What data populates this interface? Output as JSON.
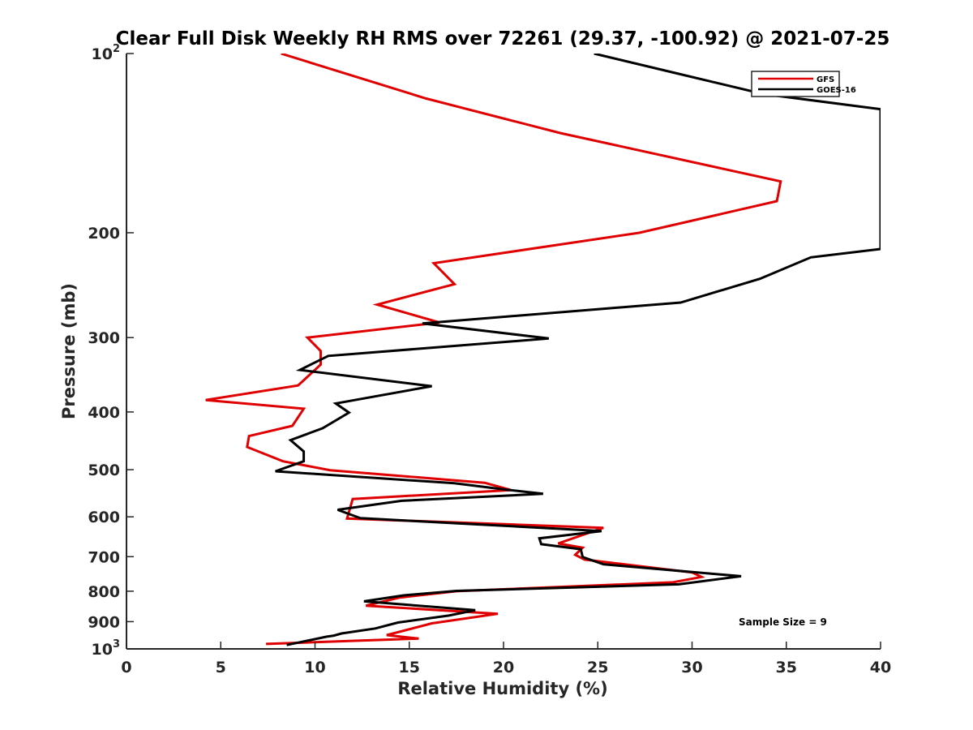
{
  "chart_data": {
    "type": "line",
    "title": "Clear Full Disk Weekly RH RMS over 72261 (29.37, -100.92) @ 2021-07-25",
    "xlabel": "Relative Humidity (%)",
    "ylabel": "Pressure (mb)",
    "xlim": [
      0,
      40
    ],
    "ylim": [
      100,
      1000
    ],
    "y_scale": "log",
    "y_reversed": true,
    "x_ticks": [
      "0",
      "5",
      "10",
      "15",
      "20",
      "25",
      "30",
      "35",
      "40"
    ],
    "y_ticks": [
      {
        "value": 100,
        "label": "10",
        "sup": "2"
      },
      {
        "value": 200,
        "label": "200"
      },
      {
        "value": 300,
        "label": "300"
      },
      {
        "value": 400,
        "label": "400"
      },
      {
        "value": 500,
        "label": "500"
      },
      {
        "value": 600,
        "label": "600"
      },
      {
        "value": 700,
        "label": "700"
      },
      {
        "value": 800,
        "label": "800"
      },
      {
        "value": 900,
        "label": "900"
      },
      {
        "value": 1000,
        "label": "10",
        "sup": "3"
      }
    ],
    "grid": false,
    "legend_position": "top-right",
    "annotation": "Sample Size = 9",
    "series": [
      {
        "name": "GFS",
        "color": "#e00000",
        "points": [
          [
            8.2,
            100
          ],
          [
            15.9,
            119
          ],
          [
            23.0,
            136
          ],
          [
            34.7,
            164
          ],
          [
            34.5,
            177
          ],
          [
            27.2,
            200
          ],
          [
            16.3,
            225
          ],
          [
            17.4,
            244
          ],
          [
            13.3,
            264
          ],
          [
            16.6,
            283
          ],
          [
            9.6,
            300
          ],
          [
            10.3,
            316
          ],
          [
            10.3,
            333
          ],
          [
            9.1,
            361
          ],
          [
            4.2,
            382
          ],
          [
            9.4,
            395
          ],
          [
            8.8,
            422
          ],
          [
            6.5,
            439
          ],
          [
            6.4,
            458
          ],
          [
            8.3,
            484
          ],
          [
            10.8,
            501
          ],
          [
            19.0,
            526
          ],
          [
            20.4,
            541
          ],
          [
            12.0,
            560
          ],
          [
            11.7,
            604
          ],
          [
            25.3,
            626
          ],
          [
            22.9,
            665
          ],
          [
            24.2,
            676
          ],
          [
            23.8,
            695
          ],
          [
            24.3,
            708
          ],
          [
            30.0,
            744
          ],
          [
            30.5,
            757
          ],
          [
            29.0,
            773
          ],
          [
            17.5,
            800
          ],
          [
            14.5,
            820
          ],
          [
            12.7,
            846
          ],
          [
            19.7,
            873
          ],
          [
            16.2,
            906
          ],
          [
            13.8,
            948
          ],
          [
            15.5,
            961
          ],
          [
            7.4,
            981
          ]
        ]
      },
      {
        "name": "GOES-16",
        "color": "#000000",
        "points": [
          [
            24.8,
            100
          ],
          [
            29.2,
            108
          ],
          [
            33.8,
            117
          ],
          [
            40.0,
            124
          ],
          [
            40.0,
            213
          ],
          [
            36.3,
            220
          ],
          [
            33.6,
            239
          ],
          [
            29.4,
            262
          ],
          [
            15.7,
            284
          ],
          [
            22.4,
            301
          ],
          [
            10.7,
            322
          ],
          [
            9.2,
            340
          ],
          [
            16.2,
            362
          ],
          [
            11.1,
            387
          ],
          [
            11.8,
            401
          ],
          [
            10.4,
            426
          ],
          [
            8.7,
            446
          ],
          [
            9.4,
            466
          ],
          [
            9.4,
            484
          ],
          [
            7.9,
            503
          ],
          [
            17.4,
            527
          ],
          [
            19.9,
            539
          ],
          [
            22.1,
            549
          ],
          [
            14.6,
            564
          ],
          [
            11.2,
            584
          ],
          [
            12.4,
            603
          ],
          [
            25.2,
            634
          ],
          [
            21.9,
            652
          ],
          [
            22.0,
            667
          ],
          [
            24.1,
            680
          ],
          [
            24.2,
            701
          ],
          [
            25.3,
            721
          ],
          [
            32.6,
            755
          ],
          [
            29.3,
            779
          ],
          [
            17.5,
            799
          ],
          [
            14.7,
            813
          ],
          [
            12.6,
            832
          ],
          [
            18.5,
            861
          ],
          [
            17.1,
            879
          ],
          [
            14.4,
            903
          ],
          [
            13.2,
            924
          ],
          [
            11.4,
            942
          ],
          [
            11.0,
            950
          ],
          [
            10.6,
            954
          ],
          [
            8.5,
            985
          ]
        ]
      }
    ]
  }
}
